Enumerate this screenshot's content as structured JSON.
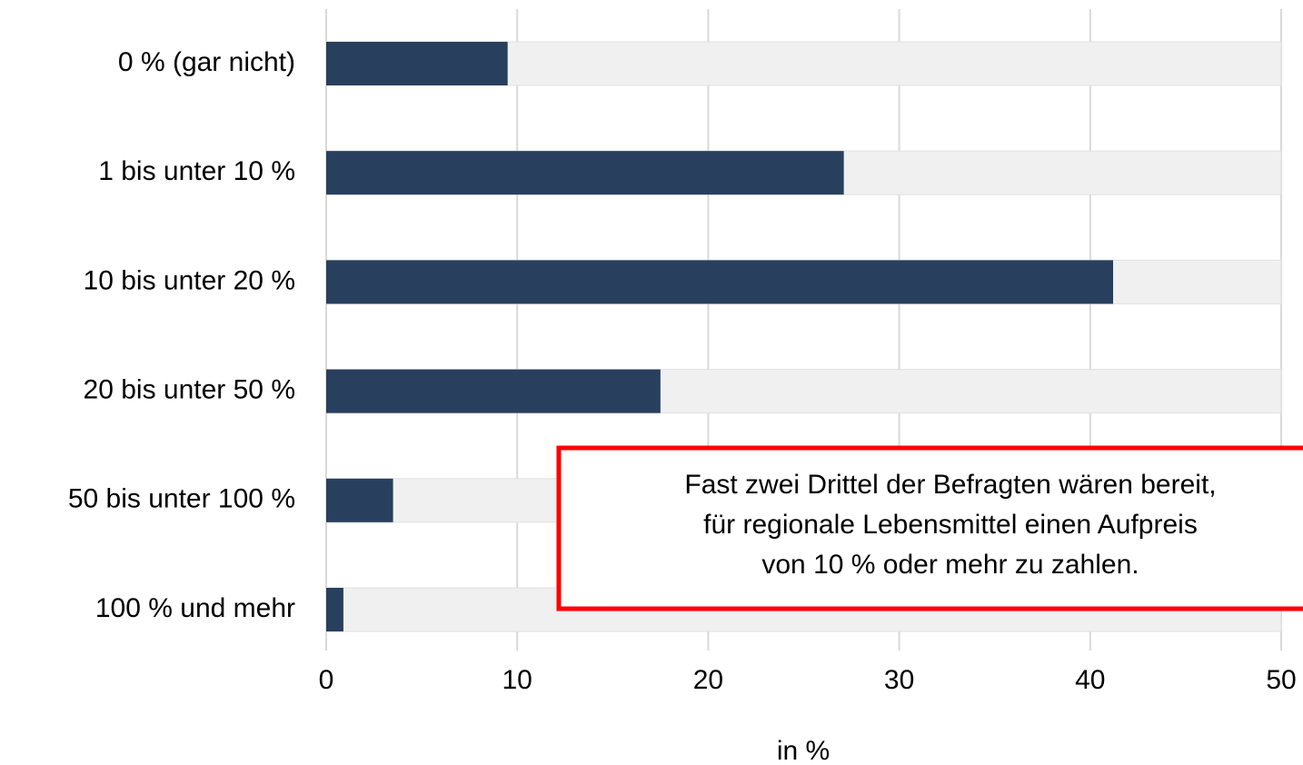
{
  "chart_data": {
    "type": "barh",
    "categories": [
      "0 % (gar nicht)",
      "1 bis unter 10 %",
      "10 bis unter 20 %",
      "20 bis unter 50 %",
      "50 bis unter 100 %",
      "100 % und mehr"
    ],
    "values": [
      9.5,
      27.1,
      41.2,
      17.5,
      3.5,
      0.9
    ],
    "color": "#283f5e",
    "track_color": "#f0f0f0",
    "xlim": [
      0,
      50
    ],
    "xticks": [
      0,
      10,
      20,
      30,
      40,
      50
    ],
    "grid": true,
    "xlabel": "in %",
    "annotation": [
      "Fast zwei Drittel der Befragten wären bereit,",
      "für regionale Lebensmittel einen Aufpreis",
      "von 10 % oder mehr zu zahlen."
    ]
  }
}
